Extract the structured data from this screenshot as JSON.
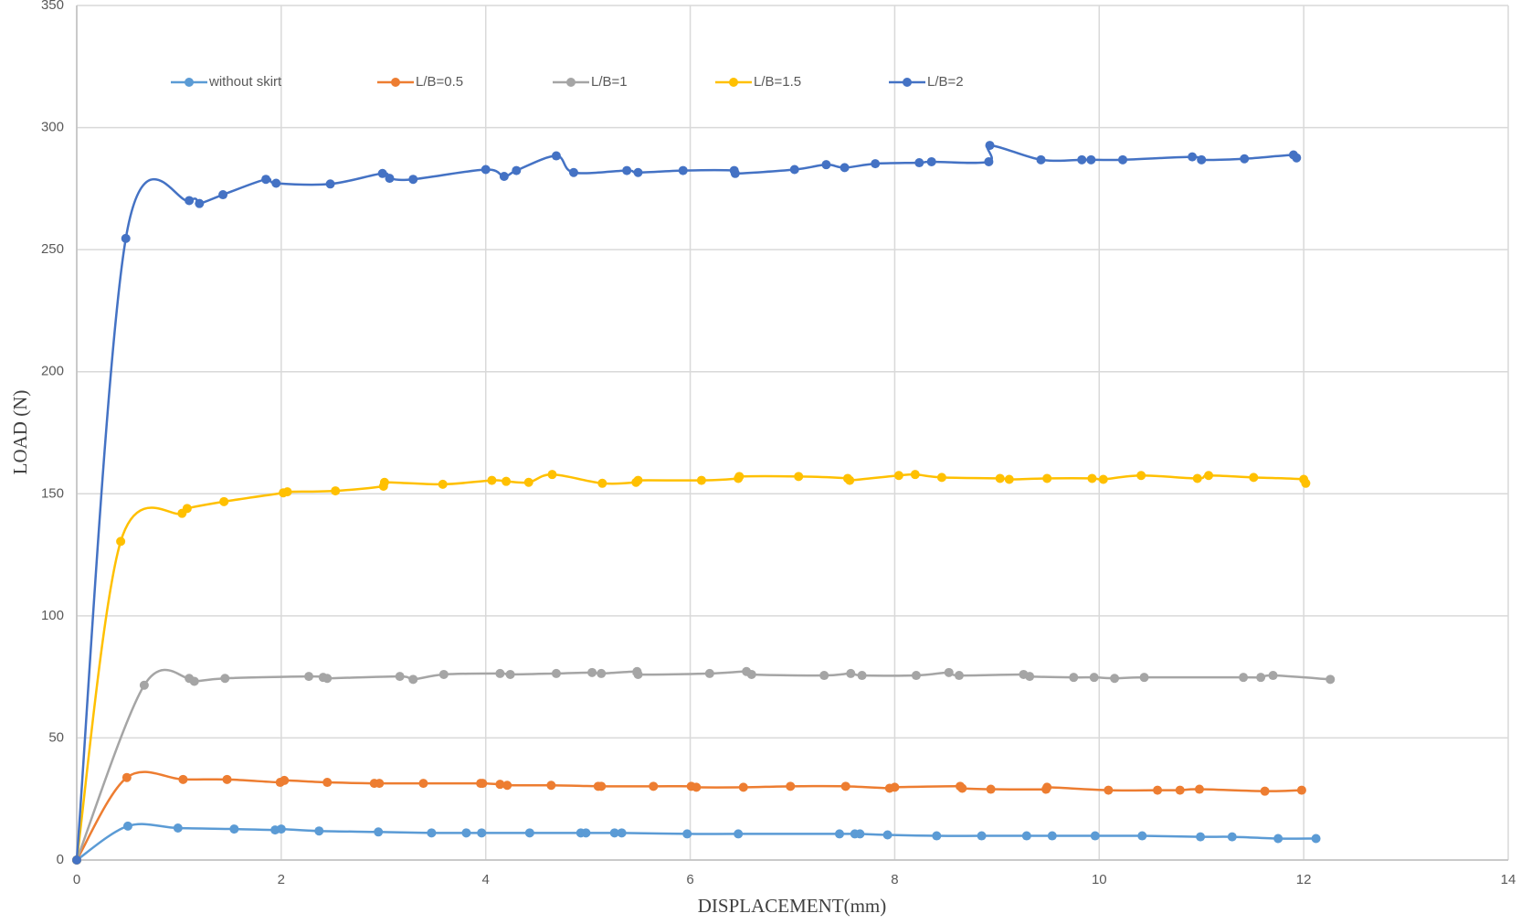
{
  "chart_data": {
    "type": "line",
    "x_label": "DISPLACEMENT(mm)",
    "y_label": "LOAD (N)",
    "xlim": [
      0,
      14
    ],
    "xticks": [
      0,
      2,
      4,
      6,
      8,
      10,
      12,
      14
    ],
    "ylim": [
      0,
      350
    ],
    "yticks": [
      0,
      50,
      100,
      150,
      200,
      250,
      300,
      350
    ],
    "grid": true,
    "legend": "top",
    "series": [
      {
        "name": "without skirt",
        "color": "#5b9bd5",
        "x": [
          0,
          0.5,
          0.99,
          1.54,
          1.94,
          2.0,
          2.37,
          2.95,
          3.47,
          3.81,
          3.96,
          4.43,
          4.93,
          4.98,
          5.26,
          5.33,
          5.97,
          6.47,
          7.46,
          7.61,
          7.66,
          7.93,
          8.41,
          8.85,
          9.29,
          9.54,
          9.96,
          10.42,
          10.99,
          11.3,
          11.75,
          12.12
        ],
        "values": [
          0,
          13.9,
          13.1,
          12.7,
          12.3,
          12.7,
          11.9,
          11.5,
          11.1,
          11.1,
          11.1,
          11.1,
          11.1,
          11.1,
          11.1,
          11.1,
          10.7,
          10.7,
          10.7,
          10.7,
          10.7,
          10.3,
          9.9,
          9.9,
          9.9,
          9.9,
          9.9,
          9.9,
          9.5,
          9.5,
          8.8,
          8.8
        ]
      },
      {
        "name": "L/B=0.5",
        "color": "#ed7d31",
        "x": [
          0,
          0.49,
          1.04,
          1.47,
          1.99,
          2.03,
          2.45,
          2.91,
          2.96,
          3.39,
          3.95,
          3.97,
          4.14,
          4.21,
          4.64,
          5.1,
          5.13,
          5.64,
          6.01,
          6.06,
          6.52,
          6.98,
          7.52,
          7.95,
          8.0,
          8.64,
          8.66,
          8.94,
          9.48,
          9.49,
          10.09,
          10.57,
          10.79,
          10.98,
          11.62,
          11.98
        ],
        "values": [
          0,
          33.8,
          33.0,
          33.0,
          31.8,
          32.6,
          31.8,
          31.4,
          31.4,
          31.4,
          31.4,
          31.4,
          31.0,
          30.6,
          30.6,
          30.2,
          30.2,
          30.2,
          30.2,
          29.8,
          29.8,
          30.2,
          30.2,
          29.4,
          29.8,
          30.2,
          29.4,
          29.0,
          29.0,
          29.8,
          28.6,
          28.6,
          28.6,
          29.0,
          28.2,
          28.6
        ]
      },
      {
        "name": "L/B=1",
        "color": "#a5a5a5",
        "x": [
          0,
          0.66,
          1.1,
          1.15,
          1.45,
          2.27,
          2.41,
          2.45,
          3.16,
          3.29,
          3.59,
          4.14,
          4.24,
          4.69,
          5.04,
          5.13,
          5.48,
          5.49,
          6.19,
          6.55,
          6.6,
          7.31,
          7.57,
          7.68,
          8.21,
          8.53,
          8.63,
          9.26,
          9.32,
          9.75,
          9.95,
          10.15,
          10.44,
          11.41,
          11.58,
          11.7,
          12.26
        ],
        "values": [
          0,
          71.6,
          74.4,
          73.2,
          74.4,
          75.2,
          74.8,
          74.4,
          75.2,
          74.0,
          76.0,
          76.4,
          76.0,
          76.4,
          76.8,
          76.4,
          77.2,
          76.0,
          76.4,
          77.2,
          76.0,
          75.6,
          76.4,
          75.6,
          75.6,
          76.8,
          75.6,
          76.0,
          75.2,
          74.8,
          74.8,
          74.4,
          74.8,
          74.8,
          74.8,
          75.6,
          74.0
        ]
      },
      {
        "name": "L/B=1.5",
        "color": "#ffc000",
        "x": [
          0,
          0.43,
          1.03,
          1.08,
          1.44,
          2.02,
          2.06,
          2.53,
          3.0,
          3.01,
          3.58,
          4.06,
          4.2,
          4.42,
          4.65,
          5.14,
          5.47,
          5.49,
          6.11,
          6.47,
          6.48,
          7.06,
          7.54,
          7.56,
          8.04,
          8.2,
          8.46,
          9.03,
          9.12,
          9.49,
          9.93,
          10.04,
          10.41,
          10.96,
          11.07,
          11.51,
          12.0,
          12.02
        ],
        "values": [
          0,
          130.5,
          142.0,
          144.0,
          146.8,
          150.4,
          150.8,
          151.2,
          153.1,
          154.7,
          153.9,
          155.5,
          155.1,
          154.7,
          157.9,
          154.3,
          154.7,
          155.5,
          155.5,
          156.3,
          157.1,
          157.1,
          156.3,
          155.5,
          157.5,
          157.9,
          156.7,
          156.3,
          155.9,
          156.3,
          156.3,
          155.9,
          157.5,
          156.3,
          157.5,
          156.7,
          155.9,
          154.3
        ]
      },
      {
        "name": "L/B=2",
        "color": "#4472c4",
        "x": [
          0,
          0.48,
          1.1,
          1.2,
          1.43,
          1.85,
          1.95,
          2.48,
          2.99,
          3.06,
          3.29,
          4.0,
          4.18,
          4.3,
          4.69,
          4.86,
          5.38,
          5.49,
          5.93,
          6.43,
          6.44,
          7.02,
          7.33,
          7.51,
          7.81,
          8.24,
          8.36,
          8.92,
          8.93,
          9.43,
          9.83,
          9.92,
          10.23,
          10.91,
          11.0,
          11.42,
          11.9,
          11.93
        ],
        "values": [
          0,
          254.6,
          270.1,
          268.9,
          272.5,
          278.8,
          277.2,
          276.9,
          281.2,
          279.2,
          278.8,
          282.8,
          280.0,
          282.4,
          288.4,
          281.6,
          282.4,
          281.6,
          282.4,
          282.4,
          281.2,
          282.8,
          284.8,
          283.6,
          285.2,
          285.6,
          286.0,
          286.0,
          292.7,
          286.8,
          286.8,
          286.8,
          286.8,
          288.0,
          286.8,
          287.2,
          288.8,
          287.6
        ]
      }
    ]
  }
}
